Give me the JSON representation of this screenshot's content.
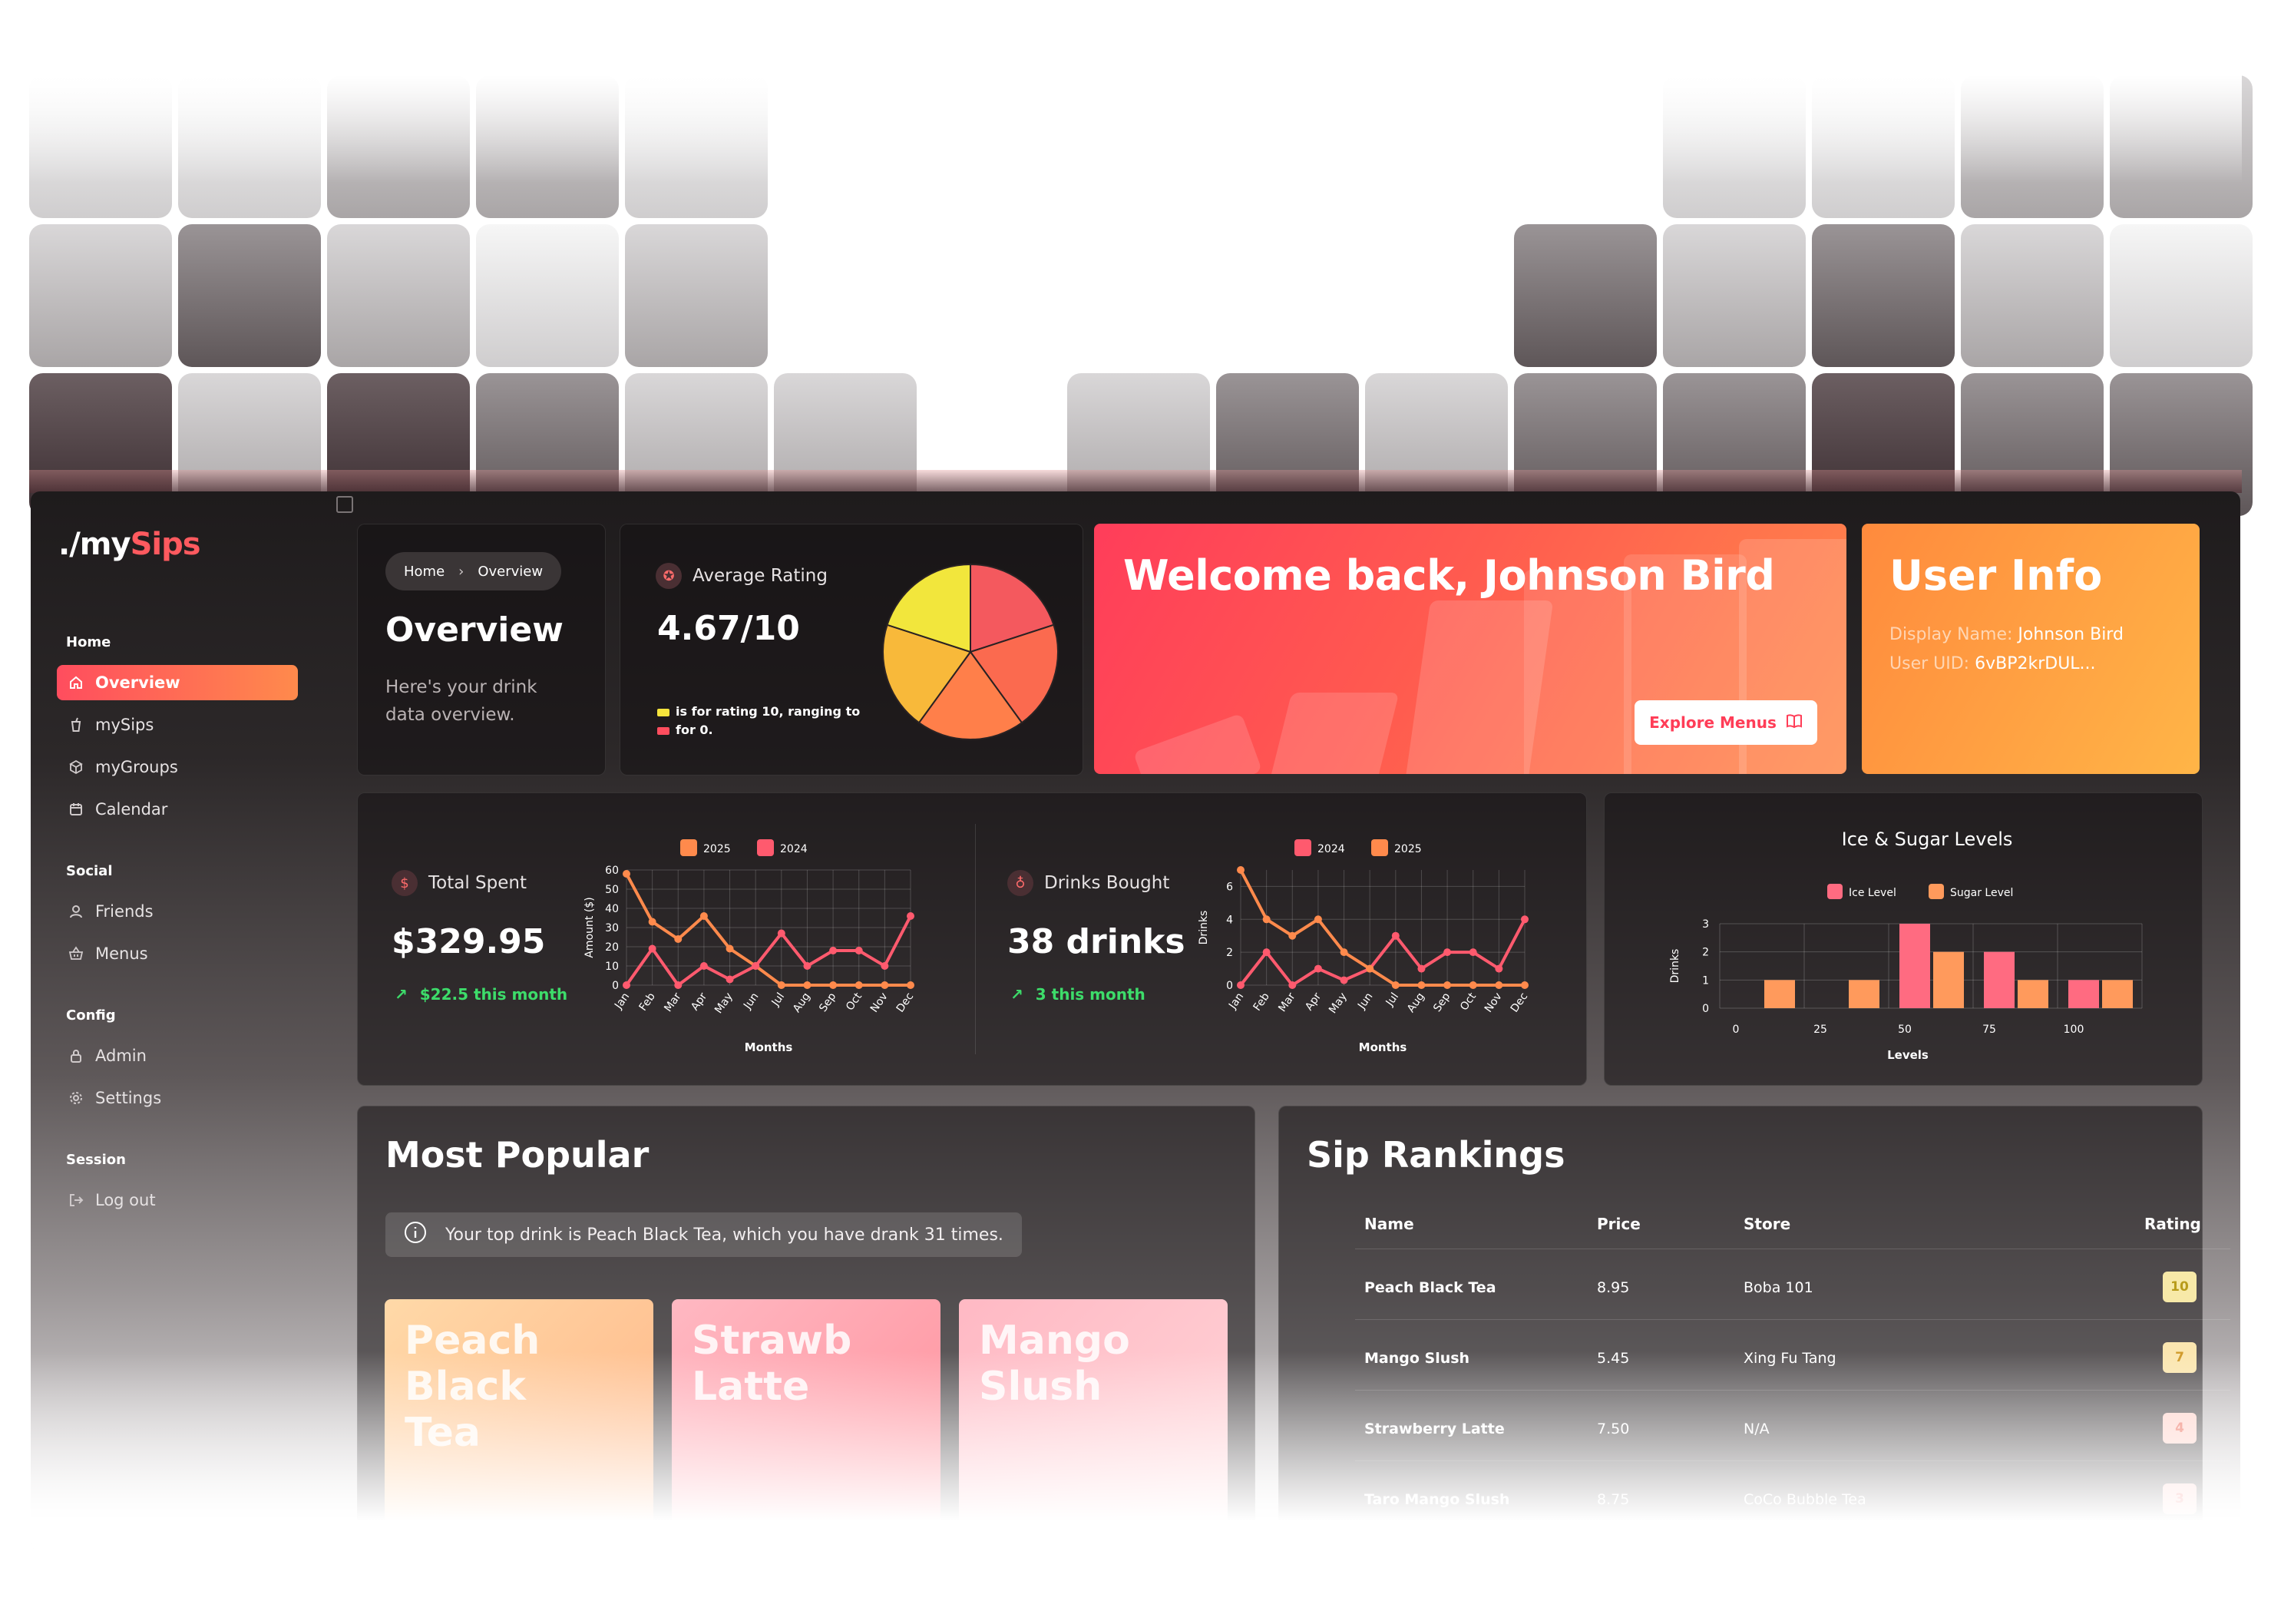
{
  "app": {
    "logo_prefix": "./my",
    "logo_accent": "Sips",
    "user_name_footer": "Johnson Bird"
  },
  "sidebar": {
    "sections": [
      {
        "title": "Home",
        "items": [
          {
            "label": "Overview",
            "icon": "home-icon",
            "active": true
          },
          {
            "label": "mySips",
            "icon": "cup-icon"
          },
          {
            "label": "myGroups",
            "icon": "boxes-icon"
          },
          {
            "label": "Calendar",
            "icon": "calendar-icon"
          }
        ]
      },
      {
        "title": "Social",
        "items": [
          {
            "label": "Friends",
            "icon": "user-icon"
          },
          {
            "label": "Menus",
            "icon": "basket-icon"
          }
        ]
      },
      {
        "title": "Config",
        "items": [
          {
            "label": "Admin",
            "icon": "lock-icon"
          },
          {
            "label": "Settings",
            "icon": "gear-icon"
          }
        ]
      },
      {
        "title": "Session",
        "items": [
          {
            "label": "Log out",
            "icon": "logout-icon"
          }
        ]
      }
    ]
  },
  "overview": {
    "breadcrumb": [
      "Home",
      "Overview"
    ],
    "breadcrumb_sep": "›",
    "title": "Overview",
    "subtitle": "Here's your drink data overview."
  },
  "rating": {
    "label": "Average Rating",
    "value": "4.67/10",
    "legend": [
      {
        "text": "is for rating 10, ranging to",
        "color": "#f5e43c"
      },
      {
        "text": "for 0.",
        "color": "#ff4d5e"
      }
    ],
    "pie_colors": [
      "#f4595e",
      "#fb6a4f",
      "#ff7f4a",
      "#f8b93a",
      "#f2e63c"
    ]
  },
  "welcome": {
    "title": "Welcome back, Johnson Bird",
    "button": "Explore Menus"
  },
  "user_info": {
    "title": "User Info",
    "display_name_label": "Display Name:",
    "display_name": "Johnson Bird",
    "uid_label": "User UID:",
    "uid": "6vBP2krDUL..."
  },
  "total_spent": {
    "label": "Total Spent",
    "value": "$329.95",
    "delta": "$22.5 this month"
  },
  "drinks_bought": {
    "label": "Drinks Bought",
    "value": "38 drinks",
    "delta": "3 this month"
  },
  "ice_sugar": {
    "title": "Ice & Sugar Levels"
  },
  "colors": {
    "accent_red": "#ff4d5e",
    "accent_orange": "#ff8a4c",
    "positive": "#3ddc6a"
  },
  "chart_data": [
    {
      "type": "line",
      "title": "",
      "xlabel": "Months",
      "ylabel": "Amount ($)",
      "categories": [
        "Jan",
        "Feb",
        "Mar",
        "Apr",
        "May",
        "Jun",
        "Jul",
        "Aug",
        "Sep",
        "Oct",
        "Nov",
        "Dec"
      ],
      "ylim": [
        0,
        60
      ],
      "yticks": [
        0,
        10,
        20,
        30,
        40,
        50,
        60
      ],
      "legend": "top",
      "grid": true,
      "series": [
        {
          "name": "2025",
          "color": "#ff8a4c",
          "values": [
            58,
            33,
            24,
            36,
            19,
            10,
            0,
            0,
            0,
            0,
            0,
            0
          ]
        },
        {
          "name": "2024",
          "color": "#ff5a6e",
          "values": [
            0,
            19,
            0,
            10,
            3,
            10,
            27,
            10,
            18,
            18,
            10,
            36
          ]
        }
      ]
    },
    {
      "type": "line",
      "title": "",
      "xlabel": "Months",
      "ylabel": "Drinks",
      "categories": [
        "Jan",
        "Feb",
        "Mar",
        "Apr",
        "May",
        "Jun",
        "Jul",
        "Aug",
        "Sep",
        "Oct",
        "Nov",
        "Dec"
      ],
      "ylim": [
        0,
        7
      ],
      "yticks": [
        0,
        2,
        4,
        6
      ],
      "legend": "top",
      "grid": true,
      "series": [
        {
          "name": "2024",
          "color": "#ff5a6e",
          "values": [
            0,
            2,
            0,
            1,
            0.3,
            1,
            3,
            1,
            2,
            2,
            1,
            4
          ]
        },
        {
          "name": "2025",
          "color": "#ff8a4c",
          "values": [
            7,
            4,
            3,
            4,
            2,
            1,
            0,
            0,
            0,
            0,
            0,
            0
          ]
        }
      ]
    },
    {
      "type": "bar",
      "title": "Ice & Sugar Levels",
      "xlabel": "Levels",
      "ylabel": "Drinks",
      "categories": [
        "0",
        "25",
        "50",
        "75",
        "100"
      ],
      "ylim": [
        0,
        3
      ],
      "yticks": [
        0,
        1,
        2,
        3
      ],
      "legend": "top",
      "grid": true,
      "series": [
        {
          "name": "Ice Level",
          "color": "#ff6b81",
          "values": [
            0,
            0,
            3,
            2,
            1
          ]
        },
        {
          "name": "Sugar Level",
          "color": "#ff9a5c",
          "values": [
            1,
            1,
            2,
            1,
            1
          ]
        }
      ]
    }
  ],
  "most_popular": {
    "title": "Most Popular",
    "info": "Your top drink is Peach Black Tea, which you have drank 31 times.",
    "cards": [
      {
        "name": "Peach Black Tea",
        "color_a": "#ffd9a8",
        "color_b": "#ffb486"
      },
      {
        "name": "Strawberry Latte",
        "color_a": "#ffb8c2",
        "color_b": "#ff8f9a"
      },
      {
        "name": "Mango Slush",
        "color_a": "#ffb9c4",
        "color_b": "#ffd5d8"
      }
    ]
  },
  "rankings": {
    "title": "Sip Rankings",
    "columns": [
      "Name",
      "Price",
      "Store",
      "Rating"
    ],
    "rows": [
      {
        "name": "Peach Black Tea",
        "price": "8.95",
        "store": "Boba 101",
        "rating": "10"
      },
      {
        "name": "Mango Slush",
        "price": "5.45",
        "store": "Xing Fu Tang",
        "rating": "7"
      },
      {
        "name": "Strawberry Latte",
        "price": "7.50",
        "store": "N/A",
        "rating": "4"
      },
      {
        "name": "Taro Mango Slush",
        "price": "8.75",
        "store": "CoCo Bubble Tea",
        "rating": "3"
      }
    ]
  }
}
